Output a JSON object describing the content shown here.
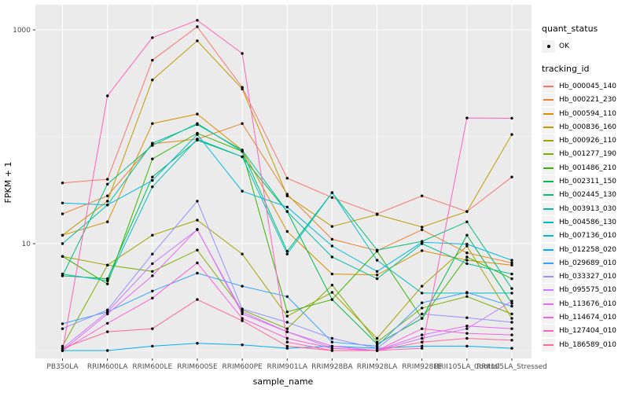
{
  "colors": {
    "panel_bg": "#EBEBEB",
    "grid": "#FFFFFF",
    "point": "#000000",
    "tick_mark": "#333333",
    "tick_text": "#4D4D4D",
    "axis_title_text": "#000000",
    "legend_key_bg": "#F2F2F2"
  },
  "legend": {
    "quant_status_title": "quant_status",
    "quant_status_items": [
      {
        "label": "OK",
        "marker": "black-point"
      }
    ],
    "tracking_id_title": "tracking_id"
  },
  "chart_data": {
    "type": "line",
    "title": "",
    "xlabel": "sample_name",
    "ylabel": "FPKM + 1",
    "y_scale": "log10",
    "ylim": [
      1,
      1400
    ],
    "grid": true,
    "legend_position": "right",
    "categories": [
      "PB350LA",
      "RRIM600LA",
      "RRIM600LE",
      "RRIM600SE",
      "RRIM600PE",
      "RRIM901LA",
      "RRIM928BA",
      "RRIM928LA",
      "RRIM928LE",
      "RRII105LA_Control",
      "RRII105LA_Stressed"
    ],
    "y_ticks": [
      {
        "value": 10,
        "label": "10"
      },
      {
        "value": 1000,
        "label": "1000"
      }
    ],
    "y_minor_gridlines": [
      1,
      100
    ],
    "point_marker": "small black dot on every data point",
    "series": [
      {
        "name": "Hb_000045_140",
        "color": "#F8766D",
        "values": [
          37,
          40,
          520,
          1070,
          290,
          41,
          27,
          19,
          28,
          20,
          42
        ]
      },
      {
        "name": "Hb_000221_230",
        "color": "#EA8331",
        "values": [
          19,
          28,
          86,
          95,
          133,
          29,
          11,
          8.6,
          13.5,
          8.2,
          6.6
        ]
      },
      {
        "name": "Hb_000594_110",
        "color": "#D89000",
        "values": [
          12,
          16,
          133,
          163,
          75,
          13,
          5.2,
          5.1,
          8.6,
          7,
          6.3
        ]
      },
      {
        "name": "Hb_000836_160",
        "color": "#C09B00",
        "values": [
          12,
          25,
          340,
          790,
          280,
          28,
          14.5,
          18.7,
          14.3,
          20,
          105
        ]
      },
      {
        "name": "Hb_000926_110",
        "color": "#A3A500",
        "values": [
          7.6,
          6.3,
          12,
          16.6,
          8,
          2.1,
          3.5,
          1.3,
          4,
          9.5,
          2
        ]
      },
      {
        "name": "Hb_001277_190",
        "color": "#7CAE00",
        "values": [
          1.1,
          6.3,
          5.5,
          8.7,
          2.4,
          1.6,
          4.1,
          1.2,
          2.5,
          3.2,
          2.2
        ]
      },
      {
        "name": "Hb_001486_210",
        "color": "#39B600",
        "values": [
          7.6,
          4.2,
          62,
          108,
          73,
          2.3,
          3,
          8.5,
          2,
          7.5,
          4.7
        ]
      },
      {
        "name": "Hb_002311_150",
        "color": "#00BB4E",
        "values": [
          5,
          4.7,
          42,
          93,
          65,
          20,
          3,
          1.15,
          2,
          12,
          2.76
        ]
      },
      {
        "name": "Hb_002445_130",
        "color": "#00BF7D",
        "values": [
          5,
          36,
          83,
          133,
          73,
          8.5,
          30,
          8.7,
          10.5,
          16,
          3.8
        ]
      },
      {
        "name": "Hb_003913_030",
        "color": "#00C1A3",
        "values": [
          10,
          23,
          87,
          130,
          75,
          20,
          7.5,
          4.7,
          10,
          6.5,
          5.2
        ]
      },
      {
        "name": "Hb_004586_130",
        "color": "#00BFC4",
        "values": [
          5.2,
          4.5,
          34,
          95,
          65,
          8,
          30,
          7,
          3.45,
          3.45,
          3.45
        ]
      },
      {
        "name": "Hb_007136_010",
        "color": "#00BAE0",
        "values": [
          24,
          23,
          39,
          105,
          31,
          22,
          9.5,
          5.5,
          10.3,
          9.9,
          7
        ]
      },
      {
        "name": "Hb_012258_020",
        "color": "#00B0F6",
        "values": [
          1,
          1,
          1.1,
          1.17,
          1.13,
          1.05,
          1.1,
          1.05,
          1.1,
          1.1,
          1.05
        ]
      },
      {
        "name": "Hb_029689_010",
        "color": "#35A2FF",
        "values": [
          1.78,
          2.3,
          3.6,
          5.3,
          4,
          3.2,
          1.2,
          1.1,
          2.8,
          3.5,
          2.6
        ]
      },
      {
        "name": "Hb_033327_010",
        "color": "#9590FF",
        "values": [
          1.6,
          2.4,
          8,
          25,
          2.45,
          1.84,
          1.3,
          1.05,
          2.2,
          2.03,
          1.84
        ]
      },
      {
        "name": "Hb_095575_010",
        "color": "#C77CFF",
        "values": [
          1.05,
          2.3,
          6.5,
          13.5,
          2.3,
          1.5,
          1.05,
          1,
          1.3,
          1.6,
          2.9
        ]
      },
      {
        "name": "Hb_113676_010",
        "color": "#E76BF3",
        "values": [
          1,
          2.2,
          5,
          13.6,
          2.2,
          1.5,
          1.1,
          1,
          1.4,
          1.7,
          1.6
        ]
      },
      {
        "name": "Hb_114674_010",
        "color": "#FA62DB",
        "values": [
          1,
          1.8,
          3.1,
          6.6,
          2,
          1.3,
          1.05,
          1,
          1.6,
          1.45,
          1.4
        ]
      },
      {
        "name": "Hb_127404_010",
        "color": "#FF62BC",
        "values": [
          1,
          241,
          846,
          1230,
          602,
          1.2,
          1,
          1,
          1.05,
          150,
          149
        ]
      },
      {
        "name": "Hb_186589_010",
        "color": "#FF6A98",
        "values": [
          1.05,
          1.5,
          1.6,
          3,
          1.9,
          1.1,
          1,
          1,
          1.2,
          1.3,
          1.25
        ]
      }
    ]
  }
}
